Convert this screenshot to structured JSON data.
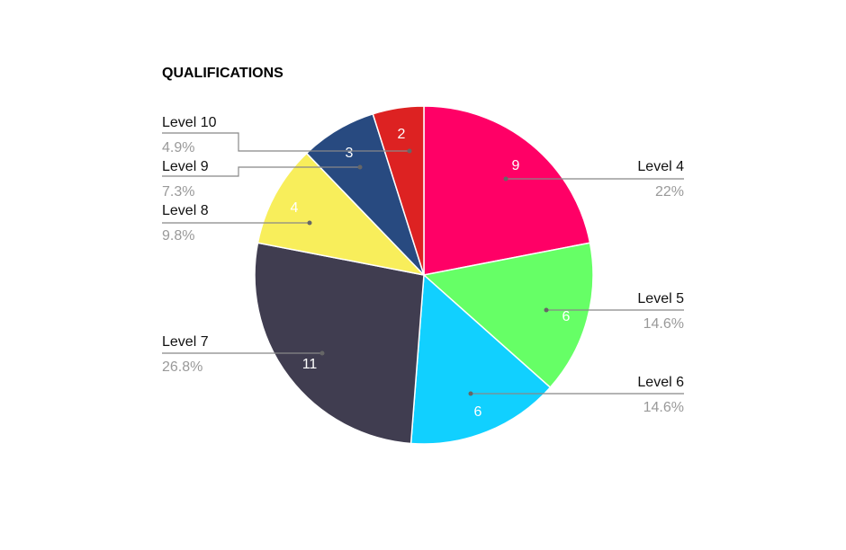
{
  "chart_data": {
    "type": "pie",
    "title": "QUALIFICATIONS",
    "categories": [
      "Level 4",
      "Level 5",
      "Level 6",
      "Level 7",
      "Level 8",
      "Level 9",
      "Level 10"
    ],
    "values": [
      9,
      6,
      6,
      11,
      4,
      3,
      2
    ],
    "percent_labels": [
      "22%",
      "14.6%",
      "14.6%",
      "26.8%",
      "9.8%",
      "7.3%",
      "4.9%"
    ],
    "colors": [
      "#ff0066",
      "#66ff66",
      "#11d0ff",
      "#403d50",
      "#f8ee5b",
      "#284a80",
      "#dd2222"
    ],
    "start": "top",
    "direction": "clockwise",
    "legend": "none"
  }
}
